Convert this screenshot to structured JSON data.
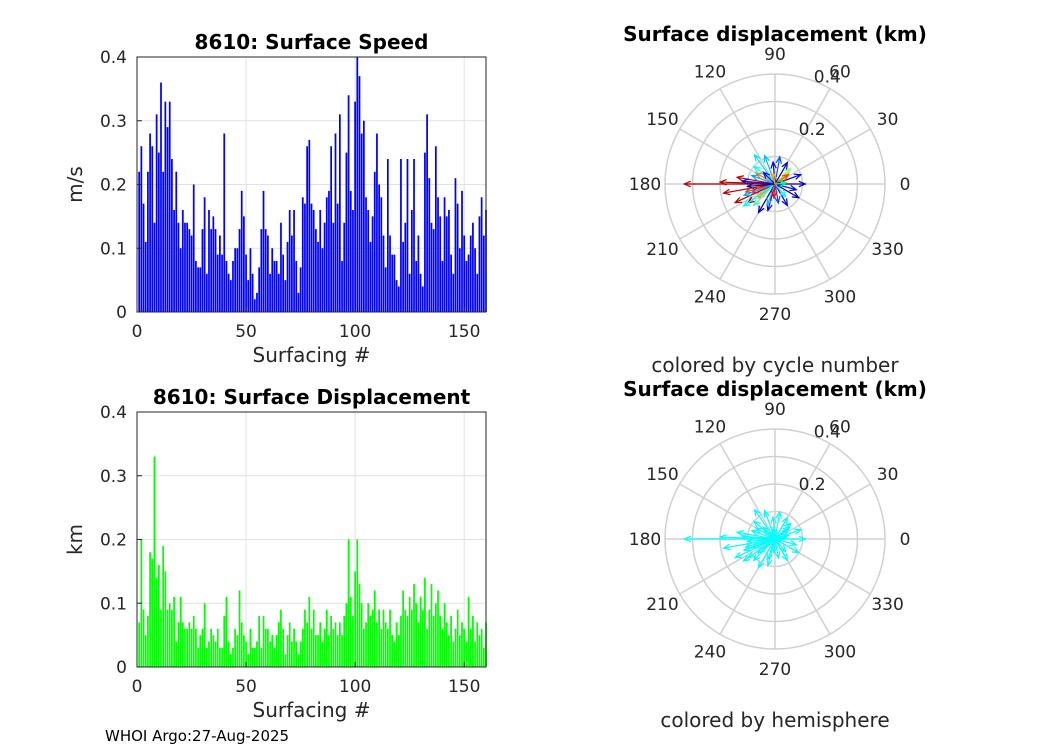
{
  "footer": {
    "text": "WHOI Argo:27-Aug-2025"
  },
  "colors": {
    "speed_bar": "#0000ff",
    "disp_bar": "#00ff00",
    "polar_grid": "#d0d0d0",
    "axis": "#262626"
  },
  "chart_data": [
    {
      "type": "bar",
      "title": "8610: Surface Speed",
      "xlabel": "Surfacing #",
      "ylabel": "m/s",
      "xlim": [
        0,
        160
      ],
      "ylim": [
        0,
        0.4
      ],
      "xticks": [
        "0",
        "50",
        "100",
        "150"
      ],
      "yticks": [
        "0",
        "0.1",
        "0.2",
        "0.3",
        "0.4"
      ],
      "grid": true,
      "values": [
        0.22,
        0.26,
        0.17,
        0.11,
        0.22,
        0.28,
        0.26,
        0.14,
        0.31,
        0.25,
        0.36,
        0.22,
        0.33,
        0.29,
        0.33,
        0.24,
        0.16,
        0.22,
        0.14,
        0.1,
        0.16,
        0.14,
        0.14,
        0.13,
        0.12,
        0.2,
        0.08,
        0.07,
        0.07,
        0.13,
        0.18,
        0.06,
        0.16,
        0.13,
        0.15,
        0.13,
        0.09,
        0.12,
        0.09,
        0.28,
        0.08,
        0.06,
        0.05,
        0.08,
        0.1,
        0.1,
        0.13,
        0.19,
        0.15,
        0.09,
        0.05,
        0.1,
        0.06,
        0.02,
        0.03,
        0.07,
        0.13,
        0.19,
        0.13,
        0.12,
        0.06,
        0.1,
        0.08,
        0.08,
        0.06,
        0.14,
        0.09,
        0.05,
        0.11,
        0.16,
        0.12,
        0.16,
        0.08,
        0.03,
        0.07,
        0.18,
        0.17,
        0.26,
        0.27,
        0.17,
        0.16,
        0.13,
        0.11,
        0.16,
        0.1,
        0.14,
        0.18,
        0.19,
        0.26,
        0.14,
        0.28,
        0.17,
        0.31,
        0.08,
        0.14,
        0.25,
        0.34,
        0.19,
        0.16,
        0.33,
        0.4,
        0.37,
        0.28,
        0.3,
        0.18,
        0.16,
        0.11,
        0.15,
        0.22,
        0.28,
        0.2,
        0.18,
        0.12,
        0.07,
        0.24,
        0.12,
        0.09,
        0.09,
        0.05,
        0.04,
        0.24,
        0.11,
        0.14,
        0.24,
        0.06,
        0.16,
        0.24,
        0.08,
        0.12,
        0.06,
        0.04,
        0.25,
        0.31,
        0.21,
        0.14,
        0.13,
        0.26,
        0.18,
        0.15,
        0.08,
        0.18,
        0.15,
        0.16,
        0.09,
        0.06,
        0.21,
        0.17,
        0.1,
        0.19,
        0.12,
        0.08,
        0.09,
        0.12,
        0.14,
        0.1,
        0.06,
        0.15,
        0.18,
        0.12,
        0.16
      ]
    },
    {
      "type": "bar",
      "title": "8610: Surface Displacement",
      "xlabel": "Surfacing #",
      "ylabel": "km",
      "xlim": [
        0,
        160
      ],
      "ylim": [
        0,
        0.4
      ],
      "xticks": [
        "0",
        "50",
        "100",
        "150"
      ],
      "yticks": [
        "0",
        "0.1",
        "0.2",
        "0.3",
        "0.4"
      ],
      "grid": true,
      "values": [
        0.07,
        0.2,
        0.09,
        0.05,
        0.08,
        0.18,
        0.17,
        0.33,
        0.14,
        0.16,
        0.09,
        0.19,
        0.15,
        0.09,
        0.1,
        0.09,
        0.11,
        0.04,
        0.07,
        0.11,
        0.07,
        0.06,
        0.06,
        0.07,
        0.06,
        0.08,
        0.06,
        0.03,
        0.05,
        0.06,
        0.1,
        0.03,
        0.04,
        0.06,
        0.05,
        0.04,
        0.06,
        0.03,
        0.03,
        0.08,
        0.11,
        0.04,
        0.02,
        0.03,
        0.06,
        0.05,
        0.12,
        0.07,
        0.05,
        0.04,
        0.02,
        0.06,
        0.03,
        0.03,
        0.04,
        0.08,
        0.03,
        0.08,
        0.06,
        0.06,
        0.04,
        0.05,
        0.03,
        0.05,
        0.07,
        0.09,
        0.06,
        0.02,
        0.05,
        0.07,
        0.04,
        0.06,
        0.04,
        0.02,
        0.04,
        0.06,
        0.09,
        0.07,
        0.11,
        0.06,
        0.09,
        0.05,
        0.05,
        0.07,
        0.04,
        0.06,
        0.09,
        0.05,
        0.08,
        0.06,
        0.07,
        0.05,
        0.07,
        0.05,
        0.08,
        0.1,
        0.2,
        0.11,
        0.08,
        0.15,
        0.2,
        0.13,
        0.1,
        0.06,
        0.07,
        0.1,
        0.08,
        0.09,
        0.12,
        0.07,
        0.09,
        0.06,
        0.09,
        0.07,
        0.06,
        0.09,
        0.05,
        0.04,
        0.07,
        0.05,
        0.08,
        0.12,
        0.09,
        0.08,
        0.11,
        0.09,
        0.13,
        0.1,
        0.07,
        0.11,
        0.09,
        0.14,
        0.06,
        0.09,
        0.13,
        0.08,
        0.1,
        0.12,
        0.08,
        0.06,
        0.1,
        0.07,
        0.05,
        0.08,
        0.04,
        0.06,
        0.09,
        0.05,
        0.07,
        0.06,
        0.04,
        0.11,
        0.06,
        0.08,
        0.04,
        0.07,
        0.05,
        0.06,
        0.03,
        0.07
      ]
    },
    {
      "type": "polar",
      "title": "Surface displacement (km)",
      "caption": "colored by cycle number",
      "rmax": 0.4,
      "rticks": [
        "0.2",
        "0.4"
      ],
      "angle_labels": [
        "0",
        "30",
        "60",
        "90",
        "120",
        "150",
        "180",
        "210",
        "240",
        "270",
        "300",
        "330"
      ],
      "vectors": [
        {
          "angle": 180,
          "r": 0.33,
          "color": "#b00000"
        },
        {
          "angle": 178,
          "r": 0.2,
          "color": "#b00000"
        },
        {
          "angle": 190,
          "r": 0.19,
          "color": "#b00000"
        },
        {
          "angle": 205,
          "r": 0.16,
          "color": "#b00000"
        },
        {
          "angle": 215,
          "r": 0.12,
          "color": "#800000"
        },
        {
          "angle": 170,
          "r": 0.14,
          "color": "#c00000"
        },
        {
          "angle": 195,
          "r": 0.11,
          "color": "#ff3000"
        },
        {
          "angle": 150,
          "r": 0.08,
          "color": "#ff8000"
        },
        {
          "angle": 40,
          "r": 0.07,
          "color": "#ffe000"
        },
        {
          "angle": 15,
          "r": 0.05,
          "color": "#ffff00"
        },
        {
          "angle": 45,
          "r": 0.08,
          "color": "#80ff80"
        },
        {
          "angle": 200,
          "r": 0.09,
          "color": "#ff0000"
        },
        {
          "angle": 220,
          "r": 0.08,
          "color": "#ffa000"
        },
        {
          "angle": 125,
          "r": 0.13,
          "color": "#00e0ff"
        },
        {
          "angle": 110,
          "r": 0.11,
          "color": "#00c0ff"
        },
        {
          "angle": 140,
          "r": 0.1,
          "color": "#00ffff"
        },
        {
          "angle": 215,
          "r": 0.14,
          "color": "#00ffff"
        },
        {
          "angle": 225,
          "r": 0.11,
          "color": "#40ffc0"
        },
        {
          "angle": 200,
          "r": 0.12,
          "color": "#00b0ff"
        },
        {
          "angle": 160,
          "r": 0.09,
          "color": "#00a0ff"
        },
        {
          "angle": 80,
          "r": 0.1,
          "color": "#0050ff"
        },
        {
          "angle": 95,
          "r": 0.08,
          "color": "#0000ff"
        },
        {
          "angle": 60,
          "r": 0.09,
          "color": "#0000d0"
        },
        {
          "angle": 20,
          "r": 0.1,
          "color": "#0000ff"
        },
        {
          "angle": 0,
          "r": 0.11,
          "color": "#0000c0"
        },
        {
          "angle": 345,
          "r": 0.08,
          "color": "#0000ff"
        },
        {
          "angle": 330,
          "r": 0.1,
          "color": "#0000a0"
        },
        {
          "angle": 300,
          "r": 0.09,
          "color": "#0000ff"
        },
        {
          "angle": 280,
          "r": 0.07,
          "color": "#0040ff"
        },
        {
          "angle": 255,
          "r": 0.1,
          "color": "#0000ff"
        },
        {
          "angle": 240,
          "r": 0.12,
          "color": "#0000b0"
        },
        {
          "angle": 250,
          "r": 0.08,
          "color": "#00c0ff"
        },
        {
          "angle": 175,
          "r": 0.12,
          "color": "#0000ff"
        },
        {
          "angle": 185,
          "r": 0.1,
          "color": "#000090"
        },
        {
          "angle": 135,
          "r": 0.06,
          "color": "#0000ff"
        },
        {
          "angle": 310,
          "r": 0.06,
          "color": "#00ffff"
        },
        {
          "angle": 35,
          "r": 0.06,
          "color": "#ff4000"
        },
        {
          "angle": 265,
          "r": 0.05,
          "color": "#ff0000"
        },
        {
          "angle": 100,
          "r": 0.04,
          "color": "#ffb000"
        },
        {
          "angle": 5,
          "r": 0.04,
          "color": "#00ff80"
        }
      ]
    },
    {
      "type": "polar",
      "title": "Surface displacement (km)",
      "caption": "colored by hemisphere",
      "rmax": 0.4,
      "rticks": [
        "0.2",
        "0.4"
      ],
      "angle_labels": [
        "0",
        "30",
        "60",
        "90",
        "120",
        "150",
        "180",
        "210",
        "240",
        "270",
        "300",
        "330"
      ],
      "vectors": [
        {
          "angle": 180,
          "r": 0.33,
          "color": "#00ffff"
        },
        {
          "angle": 178,
          "r": 0.2,
          "color": "#00ffff"
        },
        {
          "angle": 190,
          "r": 0.19,
          "color": "#00ffff"
        },
        {
          "angle": 205,
          "r": 0.16,
          "color": "#00ffff"
        },
        {
          "angle": 215,
          "r": 0.12,
          "color": "#00ffff"
        },
        {
          "angle": 170,
          "r": 0.14,
          "color": "#00ffff"
        },
        {
          "angle": 195,
          "r": 0.11,
          "color": "#00ffff"
        },
        {
          "angle": 150,
          "r": 0.08,
          "color": "#00ffff"
        },
        {
          "angle": 40,
          "r": 0.07,
          "color": "#00ffff"
        },
        {
          "angle": 15,
          "r": 0.05,
          "color": "#00ffff"
        },
        {
          "angle": 45,
          "r": 0.08,
          "color": "#00ffff"
        },
        {
          "angle": 200,
          "r": 0.09,
          "color": "#00ffff"
        },
        {
          "angle": 220,
          "r": 0.08,
          "color": "#00ffff"
        },
        {
          "angle": 125,
          "r": 0.13,
          "color": "#00ffff"
        },
        {
          "angle": 110,
          "r": 0.11,
          "color": "#00ffff"
        },
        {
          "angle": 140,
          "r": 0.1,
          "color": "#00ffff"
        },
        {
          "angle": 215,
          "r": 0.14,
          "color": "#00ffff"
        },
        {
          "angle": 225,
          "r": 0.11,
          "color": "#00ffff"
        },
        {
          "angle": 200,
          "r": 0.12,
          "color": "#00ffff"
        },
        {
          "angle": 160,
          "r": 0.09,
          "color": "#00ffff"
        },
        {
          "angle": 80,
          "r": 0.1,
          "color": "#00ffff"
        },
        {
          "angle": 95,
          "r": 0.08,
          "color": "#00ffff"
        },
        {
          "angle": 60,
          "r": 0.09,
          "color": "#00ffff"
        },
        {
          "angle": 20,
          "r": 0.1,
          "color": "#00ffff"
        },
        {
          "angle": 0,
          "r": 0.11,
          "color": "#00ffff"
        },
        {
          "angle": 345,
          "r": 0.08,
          "color": "#00ffff"
        },
        {
          "angle": 330,
          "r": 0.1,
          "color": "#00ffff"
        },
        {
          "angle": 300,
          "r": 0.09,
          "color": "#00ffff"
        },
        {
          "angle": 280,
          "r": 0.07,
          "color": "#00ffff"
        },
        {
          "angle": 255,
          "r": 0.1,
          "color": "#00ffff"
        },
        {
          "angle": 240,
          "r": 0.12,
          "color": "#00ffff"
        },
        {
          "angle": 250,
          "r": 0.08,
          "color": "#00ffff"
        },
        {
          "angle": 175,
          "r": 0.12,
          "color": "#00ffff"
        },
        {
          "angle": 185,
          "r": 0.1,
          "color": "#00ffff"
        },
        {
          "angle": 135,
          "r": 0.06,
          "color": "#00ffff"
        },
        {
          "angle": 310,
          "r": 0.06,
          "color": "#00ffff"
        },
        {
          "angle": 35,
          "r": 0.06,
          "color": "#00ffff"
        },
        {
          "angle": 265,
          "r": 0.05,
          "color": "#00ffff"
        },
        {
          "angle": 100,
          "r": 0.04,
          "color": "#00ffff"
        },
        {
          "angle": 5,
          "r": 0.04,
          "color": "#00ffff"
        }
      ]
    }
  ]
}
